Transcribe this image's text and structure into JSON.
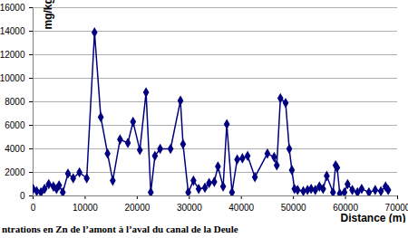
{
  "chart_data": {
    "type": "line",
    "title": "ntrations en Zn de l’amont à l’aval du canal de la Deule",
    "x_label": "Distance (m)",
    "y_label": "mg/kg",
    "x": [
      0,
      700,
      1500,
      2200,
      3000,
      3900,
      4500,
      5000,
      5700,
      6700,
      7700,
      8900,
      10300,
      11800,
      13000,
      14300,
      15300,
      16700,
      18200,
      19200,
      20500,
      21700,
      22600,
      23400,
      24400,
      26400,
      28300,
      28800,
      29800,
      30800,
      31800,
      33000,
      33800,
      34800,
      35500,
      36500,
      37200,
      38200,
      39200,
      40200,
      41200,
      42600,
      45000,
      46300,
      46800,
      47500,
      48500,
      49200,
      49700,
      50200,
      50800,
      51900,
      52700,
      53400,
      54200,
      55000,
      55700,
      56400,
      57600,
      58100,
      58400,
      58900,
      59800,
      60400,
      61300,
      62300,
      63100,
      64500,
      65700,
      66800,
      67700,
      68200
    ],
    "values": [
      600,
      400,
      300,
      600,
      1000,
      800,
      600,
      900,
      300,
      1900,
      1500,
      2000,
      1500,
      13900,
      6700,
      3600,
      1300,
      4800,
      4500,
      6300,
      3900,
      8800,
      300,
      3400,
      4000,
      4000,
      8100,
      4400,
      300,
      1300,
      600,
      700,
      1100,
      1200,
      2500,
      800,
      6100,
      300,
      3100,
      3200,
      3400,
      1600,
      3600,
      3300,
      2600,
      8300,
      7900,
      4000,
      2200,
      600,
      500,
      400,
      500,
      600,
      500,
      800,
      600,
      1700,
      300,
      2600,
      2400,
      200,
      300,
      1000,
      500,
      300,
      600,
      300,
      500,
      400,
      800,
      500
    ],
    "color": "#000080",
    "marker": "diamond",
    "xlim": [
      0,
      70000
    ],
    "xticks": [
      0,
      10000,
      20000,
      30000,
      40000,
      50000,
      60000,
      70000
    ],
    "ylim": [
      0,
      16000
    ],
    "yticks": [
      0,
      2000,
      4000,
      6000,
      8000,
      10000,
      12000,
      14000,
      16000
    ],
    "grid": true
  }
}
